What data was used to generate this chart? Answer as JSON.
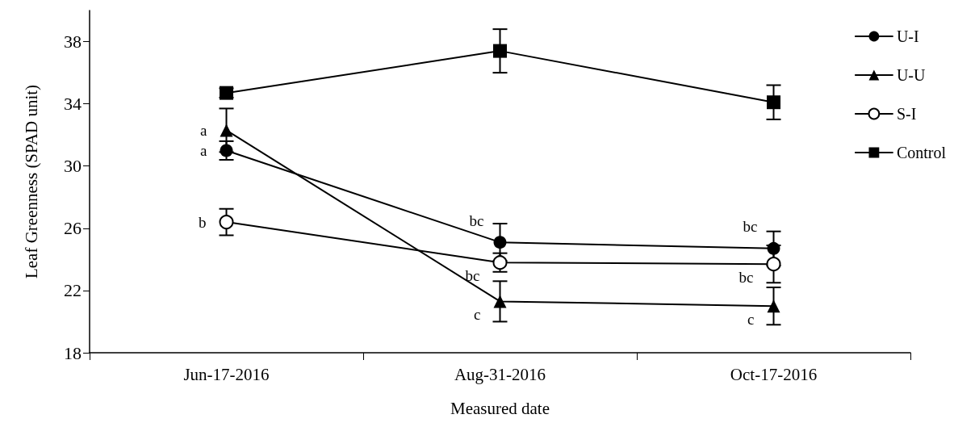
{
  "chart_data": {
    "type": "line",
    "xlabel": "Measured date",
    "ylabel": "Leaf Greenness (SPAD unit)",
    "categories": [
      "Jun-17-2016",
      "Aug-31-2016",
      "Oct-17-2016"
    ],
    "series": [
      {
        "name": "U-I",
        "color": "#000000",
        "marker": "circle",
        "values": [
          31.0,
          25.1,
          24.7
        ],
        "errors": [
          0.6,
          1.2,
          1.1
        ],
        "value_labels": [
          "a",
          "bc",
          "bc"
        ]
      },
      {
        "name": "U-U",
        "color": "#000000",
        "marker": "triangle",
        "values": [
          32.3,
          21.3,
          21.0
        ],
        "errors": [
          1.4,
          1.3,
          1.2
        ],
        "value_labels": [
          "a",
          "c",
          "c"
        ]
      },
      {
        "name": "S-I",
        "color": "#000000",
        "marker": "circle-open",
        "values": [
          26.4,
          23.8,
          23.7
        ],
        "errors": [
          0.85,
          0.6,
          1.2
        ],
        "value_labels": [
          "b",
          "bc",
          "bc"
        ]
      },
      {
        "name": "Control",
        "color": "#000000",
        "marker": "square",
        "values": [
          34.7,
          37.4,
          34.1
        ],
        "errors": [
          0.3,
          1.4,
          1.1
        ]
      }
    ],
    "ylim": [
      18,
      40
    ],
    "yticks": [
      18,
      22,
      26,
      30,
      34,
      38
    ],
    "grid": false,
    "legend": "top right",
    "line_style": "solid"
  }
}
